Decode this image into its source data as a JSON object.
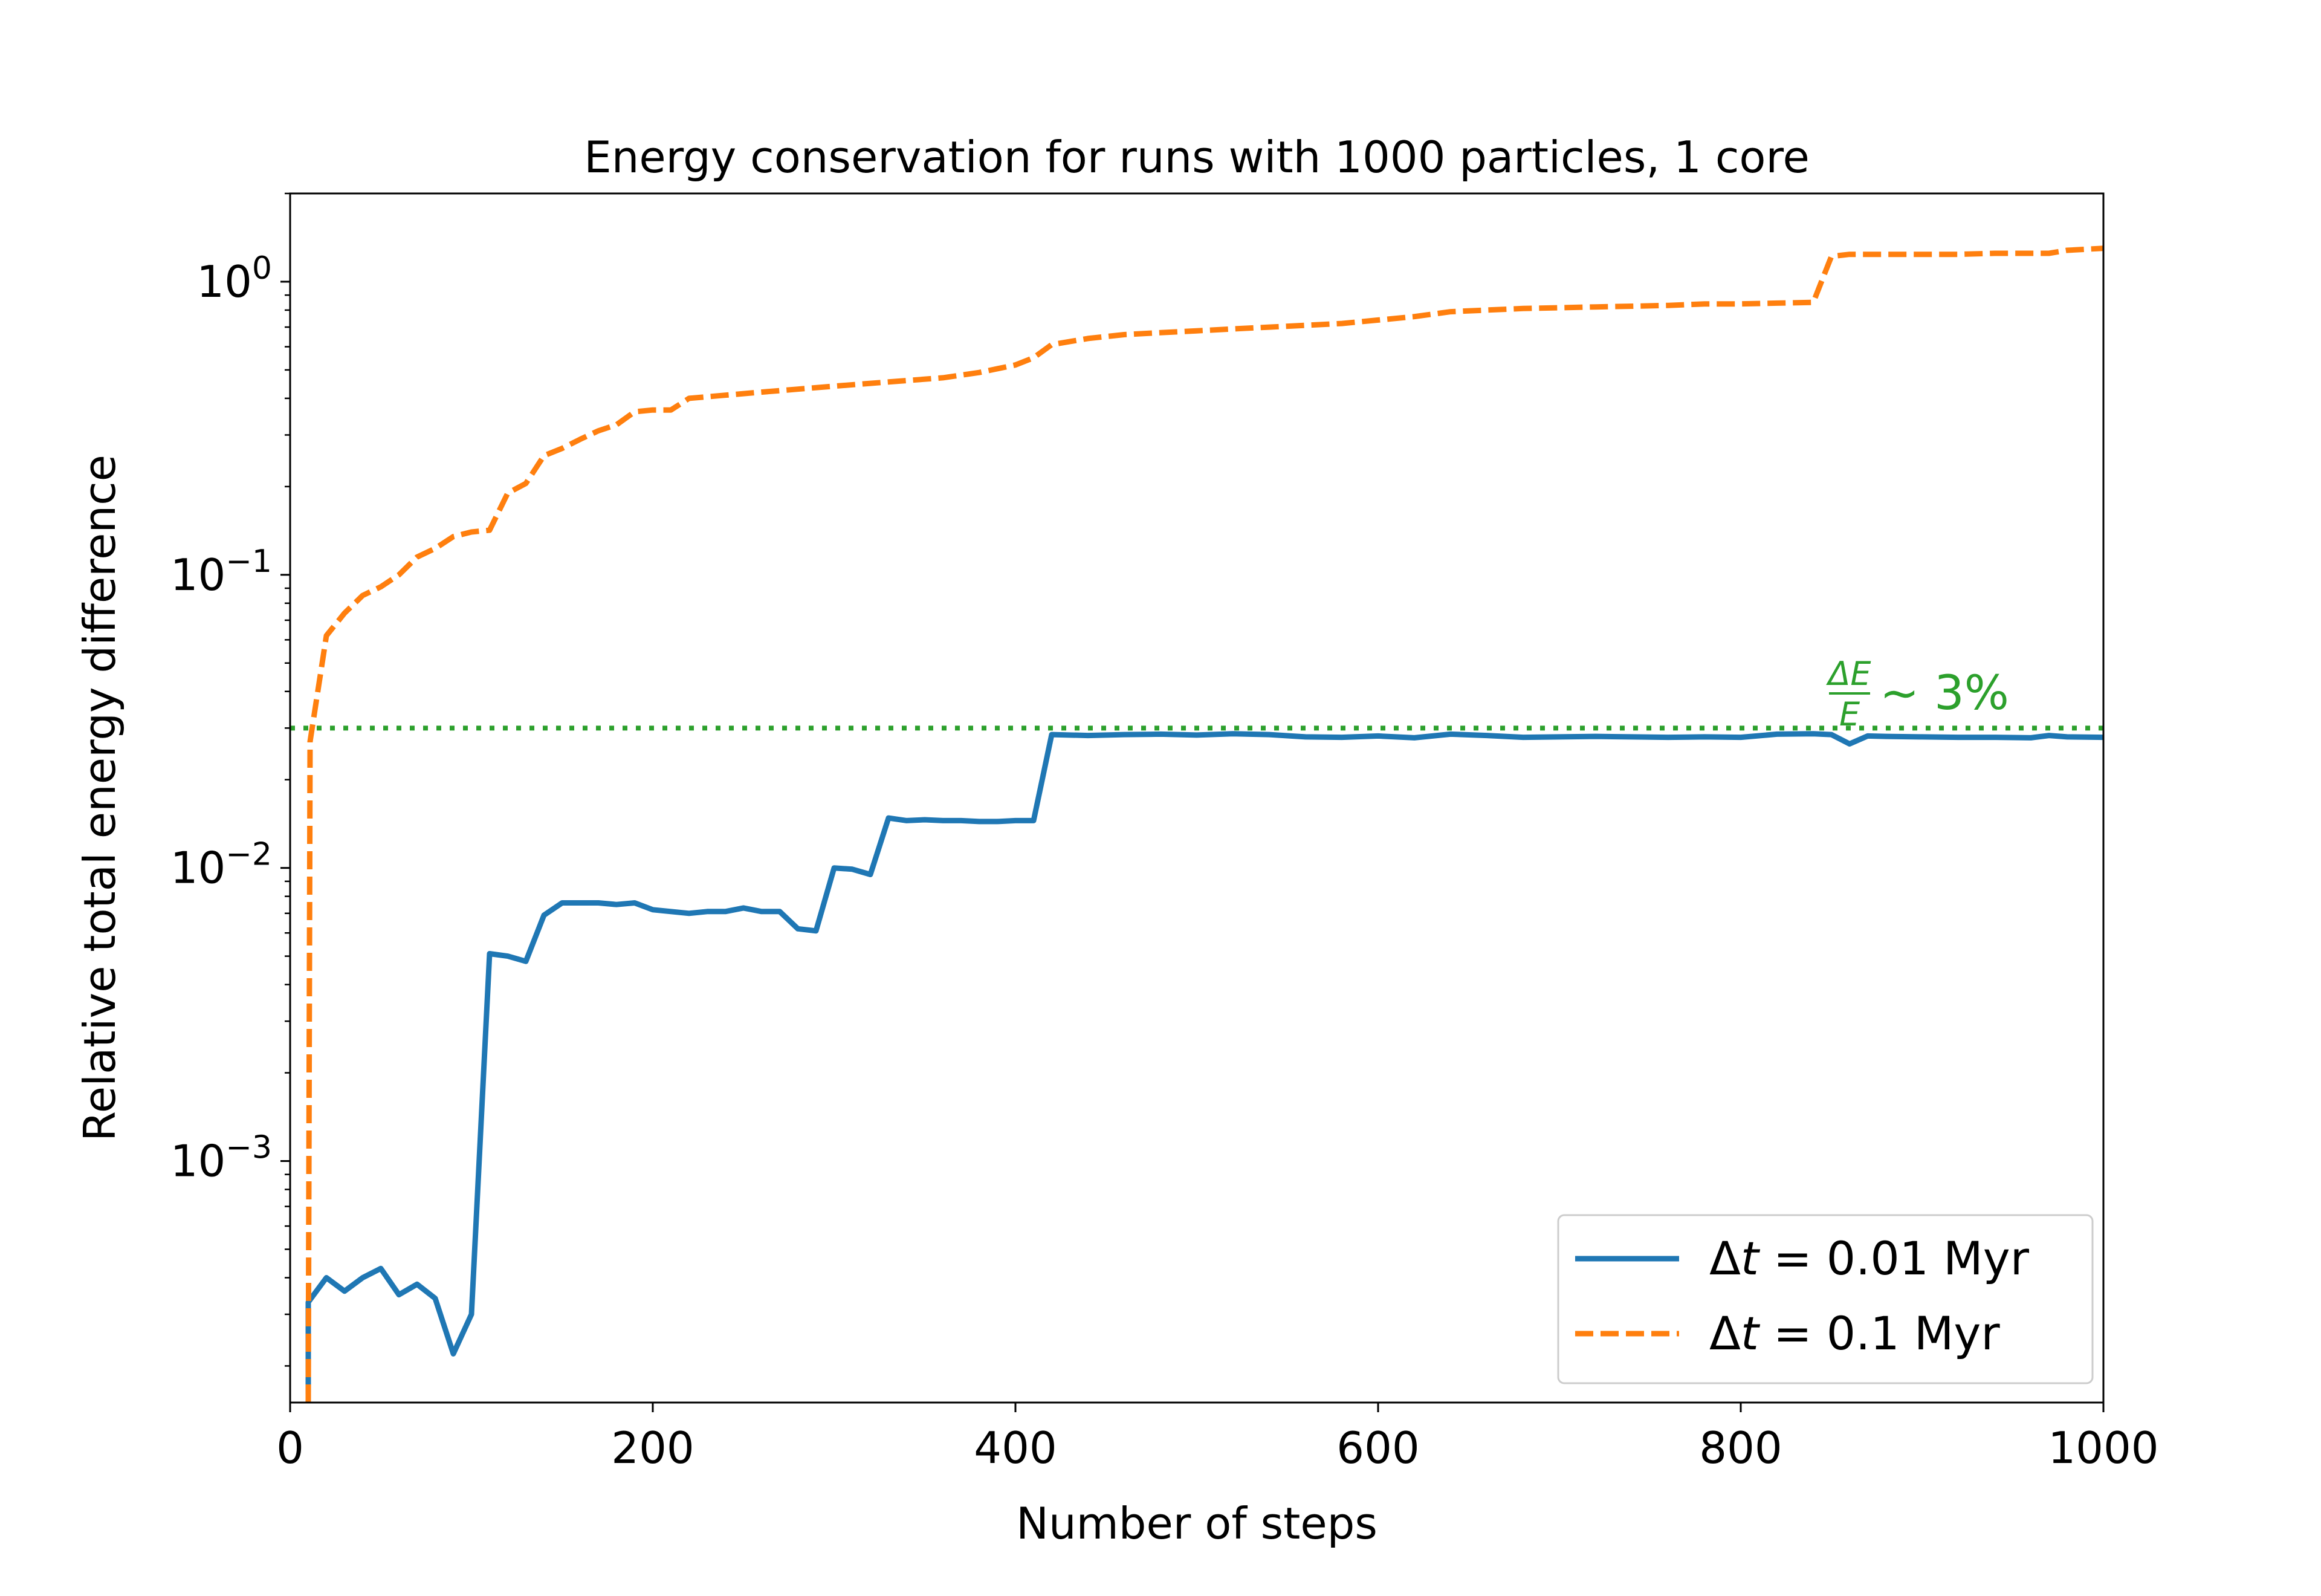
{
  "chart_data": {
    "type": "line",
    "title": "Energy conservation for runs with 1000 particles, 1 core",
    "xlabel": "Number of steps",
    "ylabel": "Relative total energy difference",
    "xlim": [
      0,
      1000
    ],
    "ylim": [
      0.00015,
      2.0
    ],
    "yscale": "log",
    "x_ticks": [
      0,
      200,
      400,
      600,
      800,
      1000
    ],
    "x_tick_labels": [
      "0",
      "200",
      "400",
      "600",
      "800",
      "1000"
    ],
    "y_ticks": [
      0.001,
      0.01,
      0.1,
      1
    ],
    "y_tick_labels": [
      {
        "base": "10",
        "exp": "−3"
      },
      {
        "base": "10",
        "exp": "−2"
      },
      {
        "base": "10",
        "exp": "−1"
      },
      {
        "base": "10",
        "exp": "0"
      }
    ],
    "grid": false,
    "legend_position": "lower right",
    "reference_line": {
      "y": 0.03,
      "color": "#2ca02c",
      "style": "dotted",
      "annotation": {
        "frac_num": "ΔE",
        "frac_den": "E",
        "text": "∼ 3%"
      }
    },
    "series": [
      {
        "name": "Δt = 0.01 Myr",
        "name_parts": [
          "Δ",
          "t",
          " = 0.01 Myr"
        ],
        "color": "#1f77b4",
        "style": "solid",
        "x": [
          10,
          10,
          20,
          30,
          40,
          50,
          60,
          70,
          80,
          90,
          100,
          110,
          120,
          130,
          140,
          150,
          160,
          170,
          180,
          190,
          200,
          210,
          220,
          230,
          240,
          250,
          260,
          270,
          280,
          290,
          300,
          310,
          320,
          330,
          340,
          350,
          360,
          370,
          380,
          390,
          400,
          410,
          420,
          440,
          460,
          480,
          500,
          520,
          540,
          560,
          580,
          600,
          620,
          640,
          660,
          680,
          700,
          720,
          740,
          760,
          780,
          800,
          820,
          840,
          850,
          860,
          870,
          880,
          900,
          920,
          940,
          960,
          970,
          980,
          1000
        ],
        "y": [
          0.00016,
          0.00033,
          0.0004,
          0.00036,
          0.0004,
          0.00043,
          0.00035,
          0.00038,
          0.00034,
          0.00022,
          0.0003,
          0.0051,
          0.005,
          0.0048,
          0.0069,
          0.0076,
          0.0076,
          0.0076,
          0.0075,
          0.0076,
          0.0072,
          0.0071,
          0.007,
          0.0071,
          0.0071,
          0.0073,
          0.0071,
          0.0071,
          0.0062,
          0.0061,
          0.01,
          0.0099,
          0.0095,
          0.0148,
          0.0145,
          0.0146,
          0.0145,
          0.0145,
          0.0144,
          0.0144,
          0.0145,
          0.0145,
          0.0285,
          0.0283,
          0.0285,
          0.0286,
          0.0284,
          0.0287,
          0.0285,
          0.028,
          0.0279,
          0.0282,
          0.0278,
          0.0286,
          0.0283,
          0.0279,
          0.028,
          0.0281,
          0.028,
          0.0279,
          0.028,
          0.0279,
          0.0286,
          0.0287,
          0.0285,
          0.0265,
          0.0282,
          0.0281,
          0.028,
          0.0279,
          0.0279,
          0.0278,
          0.0283,
          0.028,
          0.0279
        ]
      },
      {
        "name": "Δt = 0.1 Myr",
        "name_parts": [
          "Δ",
          "t",
          " = 0.1 Myr"
        ],
        "color": "#ff7f0e",
        "style": "dashed",
        "x": [
          10,
          11,
          20,
          30,
          40,
          50,
          60,
          70,
          80,
          90,
          100,
          110,
          120,
          130,
          140,
          150,
          160,
          170,
          180,
          190,
          200,
          210,
          220,
          240,
          260,
          280,
          300,
          320,
          340,
          360,
          380,
          400,
          410,
          420,
          440,
          460,
          480,
          500,
          520,
          540,
          560,
          580,
          600,
          620,
          640,
          660,
          680,
          700,
          720,
          740,
          760,
          780,
          800,
          820,
          840,
          850,
          860,
          880,
          900,
          920,
          940,
          960,
          970,
          980,
          1000
        ],
        "y": [
          0.00015,
          0.027,
          0.062,
          0.074,
          0.085,
          0.091,
          0.1,
          0.115,
          0.123,
          0.135,
          0.14,
          0.142,
          0.19,
          0.205,
          0.255,
          0.27,
          0.29,
          0.31,
          0.325,
          0.36,
          0.365,
          0.365,
          0.4,
          0.41,
          0.42,
          0.43,
          0.44,
          0.45,
          0.46,
          0.47,
          0.49,
          0.52,
          0.55,
          0.61,
          0.64,
          0.66,
          0.67,
          0.68,
          0.69,
          0.7,
          0.71,
          0.72,
          0.74,
          0.76,
          0.79,
          0.8,
          0.81,
          0.815,
          0.82,
          0.825,
          0.83,
          0.84,
          0.84,
          0.845,
          0.85,
          1.22,
          1.24,
          1.24,
          1.24,
          1.24,
          1.25,
          1.25,
          1.25,
          1.28,
          1.3
        ]
      }
    ]
  }
}
